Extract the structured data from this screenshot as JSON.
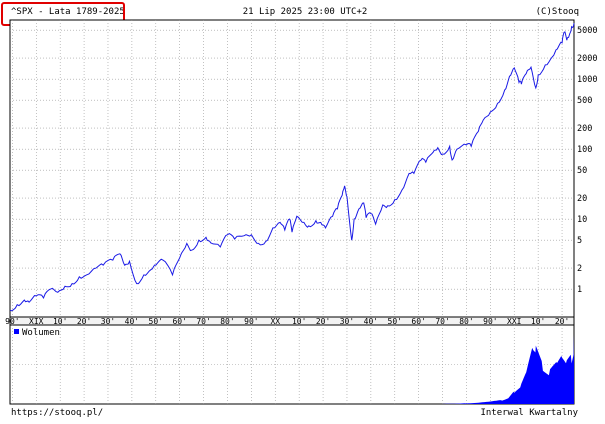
{
  "header": {
    "symbol_title": "^SPX - Lata 1789-2025",
    "datetime": "21 Lip 2025 23:00 UTC+2",
    "copyright": "(C)Stooq"
  },
  "footer": {
    "url": "https://stooq.pl/",
    "interval": "Interwal Kwartalny"
  },
  "colors": {
    "series": "#1a1ae6",
    "volume": "#0000ff",
    "highlight": "#e00000",
    "grid": "#9a9a9a"
  },
  "chart_data": [
    {
      "type": "line",
      "title": "^SPX - Lata 1789-2025",
      "yscale": "log",
      "xlim": [
        1789,
        2025
      ],
      "ylim": [
        0.4,
        7000
      ],
      "x_tick_labels": [
        "90'",
        "XIX",
        "10'",
        "20'",
        "30'",
        "40'",
        "50'",
        "60'",
        "70'",
        "80'",
        "90'",
        "XX",
        "10'",
        "20'",
        "30'",
        "40'",
        "50'",
        "60'",
        "70'",
        "80'",
        "90'",
        "XXI",
        "10'",
        "20'"
      ],
      "y_tick_labels": [
        "5000",
        "2000",
        "1000",
        "500",
        "200",
        "100",
        "50",
        "20",
        "10",
        "5",
        "2",
        "1"
      ],
      "y_tick_values": [
        5000,
        2000,
        1000,
        500,
        200,
        100,
        50,
        20,
        10,
        5,
        2,
        1
      ],
      "grid": true,
      "series": [
        {
          "x": [
            1789,
            1792,
            1795,
            1797,
            1800,
            1803,
            1806,
            1809,
            1812,
            1815,
            1818,
            1821,
            1825,
            1828,
            1832,
            1835,
            1837,
            1839,
            1842,
            1845,
            1848,
            1850,
            1853,
            1857,
            1860,
            1863,
            1865,
            1868,
            1871,
            1873,
            1877,
            1880,
            1883,
            1887,
            1890,
            1893,
            1896,
            1899,
            1902,
            1904,
            1906,
            1907,
            1909,
            1912,
            1914,
            1917,
            1919,
            1921,
            1924,
            1926,
            1928,
            1929,
            1930,
            1932,
            1933,
            1935,
            1937,
            1938,
            1940,
            1942,
            1945,
            1947,
            1950,
            1953,
            1956,
            1958,
            1961,
            1963,
            1966,
            1968,
            1970,
            1973,
            1974,
            1976,
            1980,
            1982,
            1985,
            1987,
            1990,
            1993,
            1996,
            1998,
            2000,
            2002,
            2003,
            2005,
            2007,
            2009,
            2010,
            2013,
            2016,
            2018,
            2020,
            2021,
            2022,
            2023,
            2024,
            2025
          ],
          "y": [
            0.5,
            0.6,
            0.7,
            0.65,
            0.8,
            0.75,
            1.0,
            0.9,
            1.1,
            1.2,
            1.5,
            1.6,
            2.0,
            2.2,
            2.6,
            3.2,
            2.2,
            2.5,
            1.2,
            1.6,
            1.9,
            2.2,
            2.6,
            1.6,
            2.8,
            4.5,
            3.6,
            5.0,
            5.5,
            4.6,
            4.0,
            6.0,
            5.2,
            5.8,
            6.0,
            4.5,
            4.8,
            7.5,
            9.0,
            7.0,
            10.0,
            6.5,
            11.0,
            9.0,
            8.0,
            9.5,
            9.0,
            7.5,
            11.0,
            14.0,
            22.0,
            30.0,
            21.0,
            5.0,
            10.0,
            14.0,
            17.0,
            10.5,
            12.0,
            8.5,
            16.0,
            15.5,
            19.0,
            26.0,
            45.0,
            45.0,
            70.0,
            65.0,
            90.0,
            105.0,
            85.0,
            110.0,
            70.0,
            100.0,
            115.0,
            110.0,
            180.0,
            260.0,
            340.0,
            450.0,
            700.0,
            1100.0,
            1450.0,
            900.0,
            850.0,
            1200.0,
            1480.0,
            750.0,
            1150.0,
            1600.0,
            2100.0,
            2700.0,
            3300.0,
            4700.0,
            3600.0,
            4200.0,
            5600.0,
            6300.0
          ]
        }
      ]
    },
    {
      "type": "area",
      "title": "",
      "legend": [
        "Wolumen"
      ],
      "x": [
        1970,
        1975,
        1980,
        1985,
        1990,
        1995,
        1998,
        2000,
        2003,
        2005,
        2008,
        2009,
        2012,
        2015,
        2018,
        2020,
        2022,
        2024,
        2025
      ],
      "values": [
        0.2,
        0.4,
        1.0,
        2.0,
        3.5,
        6.0,
        10.0,
        18.0,
        30.0,
        45.0,
        90.0,
        80.0,
        55.0,
        50.0,
        60.0,
        75.0,
        60.0,
        70.0,
        95.0
      ],
      "ylim": [
        0,
        100
      ]
    }
  ]
}
